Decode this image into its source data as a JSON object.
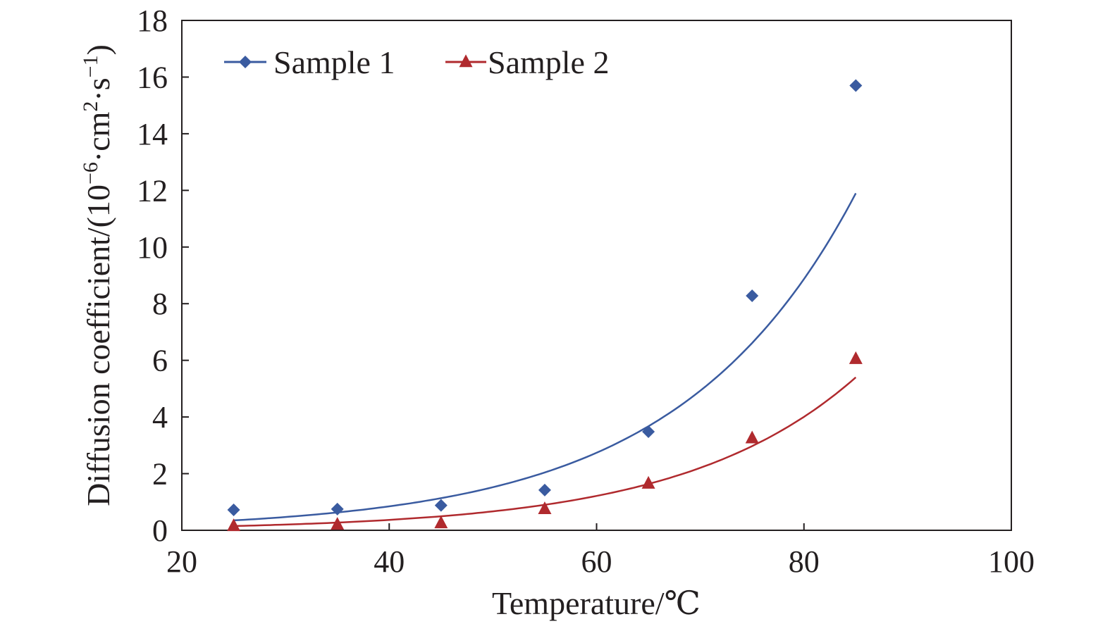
{
  "chart_data": {
    "type": "scatter",
    "title": "",
    "xlabel": "Temperature/℃",
    "ylabel": {
      "prefix": "Diffusion coefficient/(10",
      "exp1": "−6",
      "middle": "·cm",
      "exp2": "2",
      "middle2": "·s",
      "exp3": "−1",
      "suffix": ")"
    },
    "xlim": [
      20,
      100
    ],
    "ylim": [
      0,
      18
    ],
    "xticks": [
      "20",
      "40",
      "60",
      "80",
      "100"
    ],
    "yticks": [
      "0",
      "2",
      "4",
      "6",
      "8",
      "10",
      "12",
      "14",
      "16",
      "18"
    ],
    "grid": false,
    "legend_position": "top-left",
    "series": [
      {
        "name": "Sample 1",
        "marker": "diamond",
        "color": "#3a5ba0",
        "x": [
          25,
          35,
          45,
          55,
          65,
          75,
          85
        ],
        "y": [
          0.72,
          0.75,
          0.88,
          1.42,
          3.48,
          8.28,
          15.7
        ],
        "fit": {
          "type": "exponential",
          "x": [
            25,
            85
          ],
          "y": [
            0.35,
            11.9
          ]
        }
      },
      {
        "name": "Sample 2",
        "marker": "triangle",
        "color": "#b02a2e",
        "x": [
          25,
          35,
          45,
          55,
          65,
          75,
          85
        ],
        "y": [
          0.15,
          0.2,
          0.25,
          0.75,
          1.65,
          3.25,
          6.05
        ],
        "fit": {
          "type": "exponential",
          "x": [
            25,
            85
          ],
          "y": [
            0.15,
            5.4
          ]
        }
      }
    ]
  }
}
